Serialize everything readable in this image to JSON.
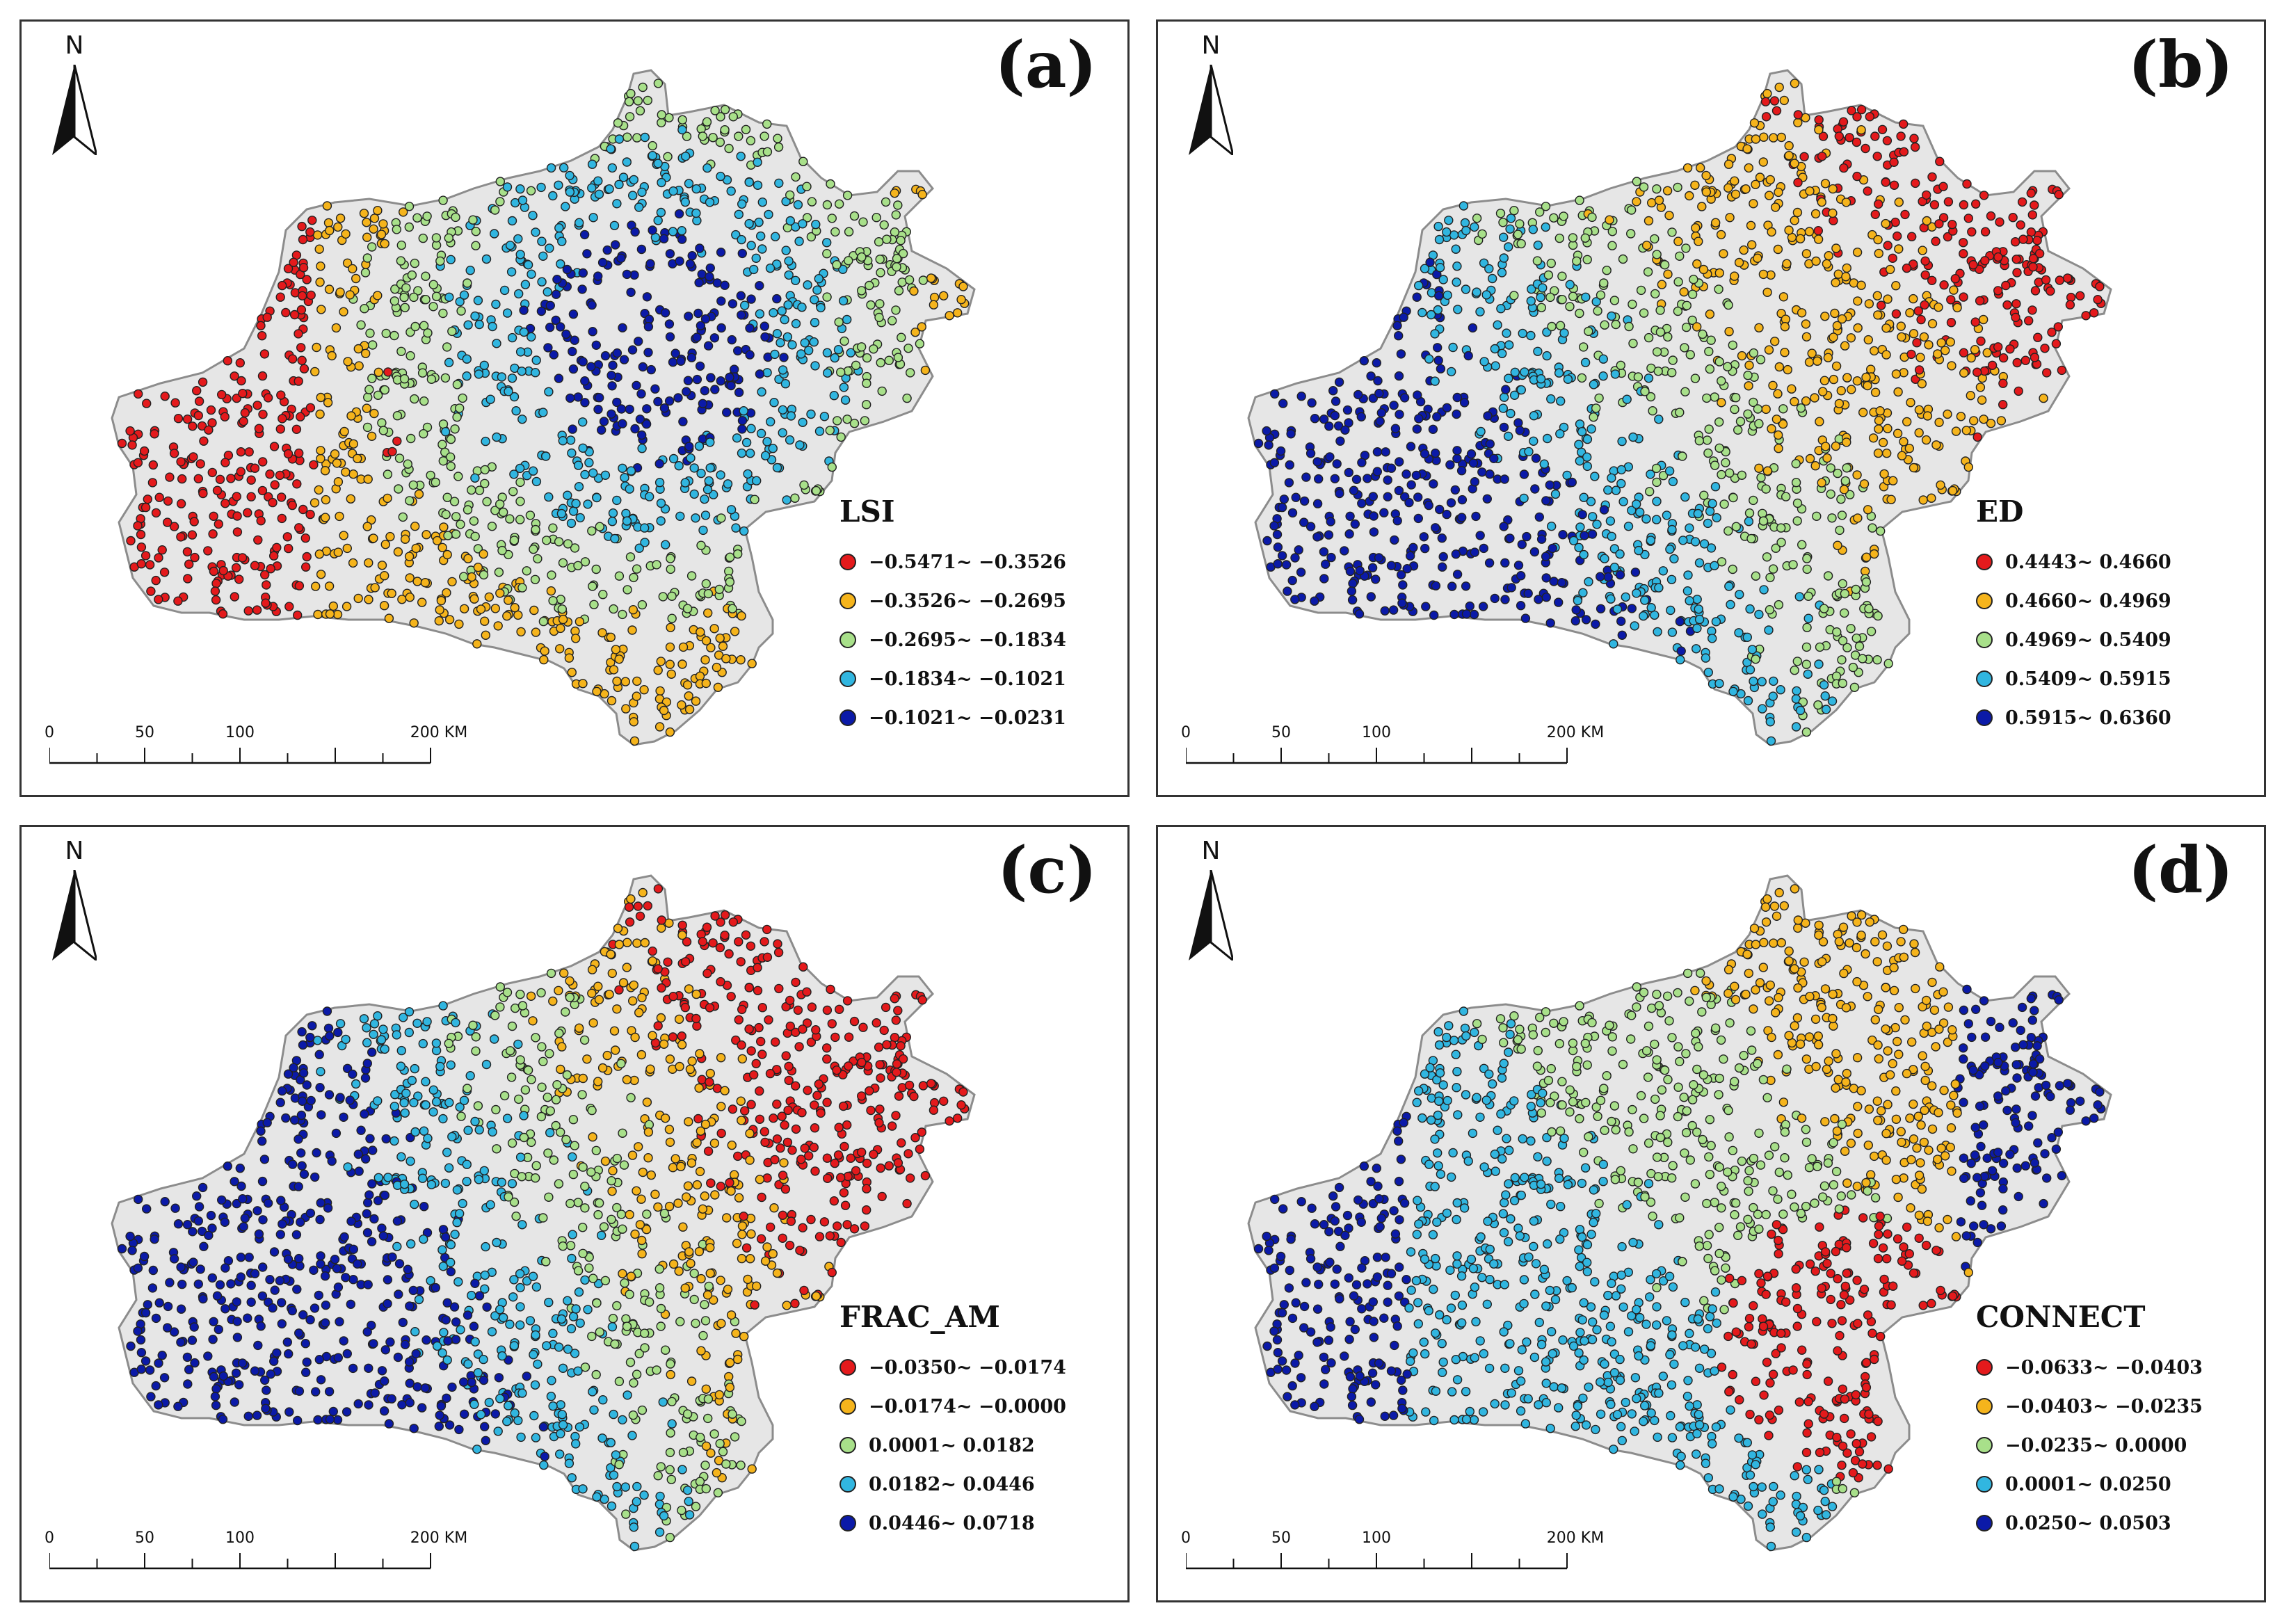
{
  "north_label": "N",
  "scale_labels": [
    "0",
    "50",
    "100",
    "200 KM"
  ],
  "colors": {
    "region_fill": "#e6e6e6",
    "region_stroke": "#8c8c8c",
    "classes": [
      "#e41a1c",
      "#f5b41c",
      "#a8e08a",
      "#31b6e0",
      "#0b1aa8"
    ]
  },
  "panels": [
    {
      "label": "(a)",
      "metric": "LSI",
      "pattern": "lsi",
      "classes": [
        "−0.5471~ −0.3526",
        "−0.3526~ −0.2695",
        "−0.2695~ −0.1834",
        "−0.1834~ −0.1021",
        "−0.1021~ −0.0231"
      ]
    },
    {
      "label": "(b)",
      "metric": "ED",
      "pattern": "ed",
      "classes": [
        "0.4443~ 0.4660",
        "0.4660~ 0.4969",
        "0.4969~ 0.5409",
        "0.5409~ 0.5915",
        "0.5915~ 0.6360"
      ]
    },
    {
      "label": "(c)",
      "metric": "FRAC_AM",
      "pattern": "frac",
      "classes": [
        "−0.0350~ −0.0174",
        "−0.0174~ −0.0000",
        "0.0001~ 0.0182",
        "0.0182~ 0.0446",
        "0.0446~ 0.0718"
      ]
    },
    {
      "label": "(d)",
      "metric": "CONNECT",
      "pattern": "connect",
      "classes": [
        "−0.0633~ −0.0403",
        "−0.0403~ −0.0235",
        "−0.0235~ 0.0000",
        "0.0001~ 0.0250",
        "0.0250~ 0.0503"
      ]
    }
  ]
}
